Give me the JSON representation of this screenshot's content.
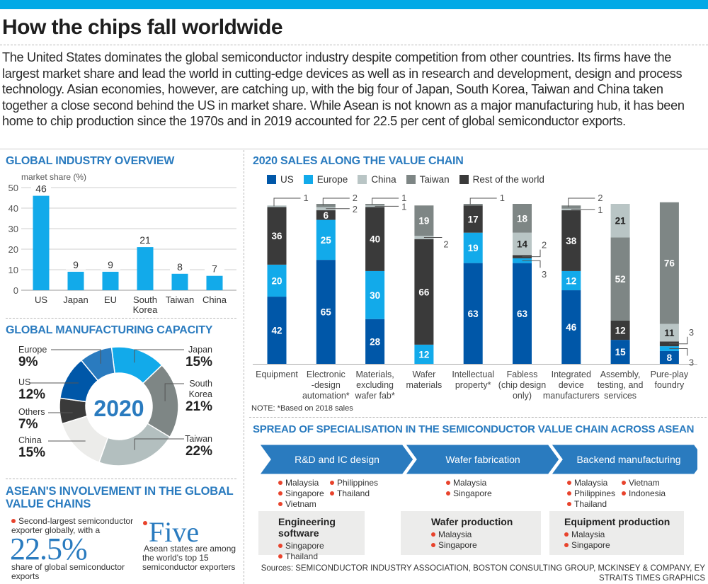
{
  "header": {
    "title": "How the chips fall worldwide",
    "intro": "The United States dominates the global semiconductor industry despite competition from other countries. Its firms have the largest market share and lead the world in cutting-edge devices as well as in research and development, design and process technology. Asian economies, however, are catching up, with the big four of Japan, South Korea, Taiwan and China taken together a close second behind the US in market share. While Asean is not known as a major manufacturing hub, it has been home to chip production since the 1970s and in 2019 accounted for 22.5 per cent of global semiconductor exports."
  },
  "colors": {
    "accent_bar": "#00a9e6",
    "section_title": "#2a7bbf",
    "us": "#0057a8",
    "europe": "#12aaea",
    "china": "#b9c5c5",
    "taiwan": "#7e8685",
    "rest": "#3a3a3a",
    "bullet": "#e8432c"
  },
  "sections": {
    "overview_title": "GLOBAL INDUSTRY OVERVIEW",
    "capacity_title": "GLOBAL MANUFACTURING CAPACITY",
    "asean_title_1": "ASEAN'S INVOLVEMENT IN THE GLOBAL",
    "asean_title_2": "VALUE CHAINS",
    "value_chain_title": "2020 SALES ALONG THE VALUE CHAIN",
    "spread_title": "SPREAD OF SPECIALISATION IN THE SEMICONDUCTOR VALUE CHAIN ACROSS ASEAN"
  },
  "chart_data": [
    {
      "type": "bar",
      "title": "GLOBAL INDUSTRY OVERVIEW",
      "ylabel": "market share (%)",
      "categories": [
        "US",
        "Japan",
        "EU",
        "South Korea",
        "Taiwan",
        "China"
      ],
      "category_lines": [
        [
          "US"
        ],
        [
          "Japan"
        ],
        [
          "EU"
        ],
        [
          "South",
          "Korea"
        ],
        [
          "Taiwan"
        ],
        [
          "China"
        ]
      ],
      "values": [
        46,
        9,
        9,
        21,
        8,
        7
      ],
      "ylim": [
        0,
        50
      ],
      "yticks": [
        0,
        10,
        20,
        30,
        40,
        50
      ],
      "grid": true
    },
    {
      "type": "pie",
      "title": "GLOBAL MANUFACTURING CAPACITY",
      "center_label": "2020",
      "slices": [
        {
          "label": "Japan",
          "label_lines": [
            "Japan"
          ],
          "value": 15,
          "display": "15%",
          "color": "#12aaea",
          "side": "right"
        },
        {
          "label": "South Korea",
          "label_lines": [
            "South",
            "Korea"
          ],
          "value": 21,
          "display": "21%",
          "color": "#7e8685",
          "side": "right"
        },
        {
          "label": "Taiwan",
          "label_lines": [
            "Taiwan"
          ],
          "value": 22,
          "display": "22%",
          "color": "#b3bfbf",
          "side": "right"
        },
        {
          "label": "China",
          "label_lines": [
            "China"
          ],
          "value": 15,
          "display": "15%",
          "color": "#ececea",
          "side": "left"
        },
        {
          "label": "Others",
          "label_lines": [
            "Others"
          ],
          "value": 7,
          "display": "7%",
          "color": "#3a3a3a",
          "side": "left"
        },
        {
          "label": "US",
          "label_lines": [
            "US"
          ],
          "value": 12,
          "display": "12%",
          "color": "#0057a8",
          "side": "left"
        },
        {
          "label": "Europe",
          "label_lines": [
            "Europe"
          ],
          "value": 9,
          "display": "9%",
          "color": "#2a7bbf",
          "side": "left"
        }
      ]
    },
    {
      "type": "bar",
      "stacked": true,
      "title": "2020 SALES ALONG THE VALUE CHAIN",
      "legend": [
        "US",
        "Europe",
        "China",
        "Taiwan",
        "Rest of the world"
      ],
      "legend_position": "top",
      "categories": [
        "Equipment",
        "Electronic-design automation*",
        "Materials, excluding wafer fab*",
        "Wafer materials",
        "Intellectual property*",
        "Fabless (chip design only)",
        "Integrated device manufacturers",
        "Assembly, testing, and services",
        "Pure-play foundry"
      ],
      "category_lines": [
        [
          "Equipment"
        ],
        [
          "Electronic",
          "-design",
          "automation*"
        ],
        [
          "Materials,",
          "excluding",
          "wafer fab*"
        ],
        [
          "Wafer",
          "materials"
        ],
        [
          "Intellectual",
          "property*"
        ],
        [
          "Fabless",
          "(chip design",
          "only)"
        ],
        [
          "Integrated",
          "device",
          "manufacturers"
        ],
        [
          "Assembly,",
          "testing, and",
          "services"
        ],
        [
          "Pure-play",
          "foundry"
        ]
      ],
      "stacks": [
        [
          {
            "series": "US",
            "value": 42
          },
          {
            "series": "Europe",
            "value": 20
          },
          {
            "series": "Rest of the world",
            "value": 36
          },
          {
            "series": "China",
            "value": 1
          }
        ],
        [
          {
            "series": "US",
            "value": 65
          },
          {
            "series": "Europe",
            "value": 25
          },
          {
            "series": "Rest of the world",
            "value": 6
          },
          {
            "series": "China",
            "value": 2
          },
          {
            "series": "Taiwan",
            "value": 2
          }
        ],
        [
          {
            "series": "US",
            "value": 28
          },
          {
            "series": "Europe",
            "value": 30
          },
          {
            "series": "Rest of the world",
            "value": 40
          },
          {
            "series": "China",
            "value": 1
          },
          {
            "series": "Taiwan",
            "value": 1
          }
        ],
        [
          {
            "series": "Europe",
            "value": 12
          },
          {
            "series": "Rest of the world",
            "value": 66
          },
          {
            "series": "China",
            "value": 2
          },
          {
            "series": "Taiwan",
            "value": 19
          }
        ],
        [
          {
            "series": "US",
            "value": 63
          },
          {
            "series": "Europe",
            "value": 19
          },
          {
            "series": "Rest of the world",
            "value": 17
          },
          {
            "series": "Taiwan",
            "value": 1
          }
        ],
        [
          {
            "series": "US",
            "value": 63
          },
          {
            "series": "Europe",
            "value": 3
          },
          {
            "series": "Rest of the world",
            "value": 2
          },
          {
            "series": "China",
            "value": 14
          },
          {
            "series": "Taiwan",
            "value": 18
          }
        ],
        [
          {
            "series": "US",
            "value": 46
          },
          {
            "series": "Europe",
            "value": 12
          },
          {
            "series": "Rest of the world",
            "value": 38
          },
          {
            "series": "China",
            "value": 1
          },
          {
            "series": "Taiwan",
            "value": 2
          }
        ],
        [
          {
            "series": "US",
            "value": 15
          },
          {
            "series": "Rest of the world",
            "value": 12
          },
          {
            "series": "Taiwan",
            "value": 52
          },
          {
            "series": "China",
            "value": 21
          }
        ],
        [
          {
            "series": "US",
            "value": 8
          },
          {
            "series": "Europe",
            "value": 3
          },
          {
            "series": "Rest of the world",
            "value": 3
          },
          {
            "series": "China",
            "value": 11
          },
          {
            "series": "Taiwan",
            "value": 76
          }
        ]
      ],
      "ylim": [
        0,
        100
      ],
      "note": "NOTE: *Based on 2018 sales"
    }
  ],
  "asean": {
    "stat1_lead": "Second-largest semiconductor exporter globally, with a",
    "stat1_lead_line1": "Second-largest semiconductor",
    "stat1_lead_line2": "exporter globally, with a",
    "stat1_value": "22.5%",
    "stat1_tail_line1": "share of global semiconductor",
    "stat1_tail_line2": "exports",
    "stat2_value": "Five",
    "stat2_line1": "Asean states are among",
    "stat2_line2": "the world's top 15",
    "stat2_line3": "semiconductor exporters"
  },
  "spread": {
    "stages": [
      {
        "label": "R&D and IC design",
        "col1": [
          "Malaysia",
          "Singapore",
          "Vietnam"
        ],
        "col2": [
          "Philippines",
          "Thailand"
        ]
      },
      {
        "label": "Wafer fabrication",
        "col1": [
          "Malaysia",
          "Singapore"
        ],
        "col2": []
      },
      {
        "label": "Backend manufacturing",
        "col1": [
          "Malaysia",
          "Philippines",
          "Thailand"
        ],
        "col2": [
          "Vietnam",
          "Indonesia"
        ]
      }
    ],
    "boxes": [
      {
        "title": "Engineering software",
        "items": [
          "Singapore",
          "Thailand"
        ]
      },
      {
        "title": "Wafer production",
        "items": [
          "Malaysia",
          "Singapore"
        ]
      },
      {
        "title": "Equipment production",
        "items": [
          "Malaysia",
          "Singapore"
        ]
      }
    ]
  },
  "footer": {
    "sources": "Sources: SEMICONDUCTOR INDUSTRY ASSOCIATION, BOSTON CONSULTING GROUP, MCKINSEY & COMPANY, EY",
    "credit": "STRAITS TIMES GRAPHICS"
  }
}
